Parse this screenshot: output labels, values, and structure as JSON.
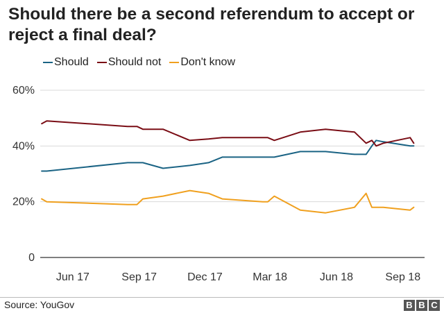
{
  "chart_data": {
    "type": "line",
    "title": "Should there be a second referendum to accept or reject a final deal?",
    "xlabel": "",
    "ylabel": "",
    "ylim": [
      0,
      60
    ],
    "yticks": [
      0,
      20,
      40,
      60
    ],
    "ytick_labels": [
      "0",
      "20%",
      "40%",
      "60%"
    ],
    "xticks": [
      "2017-06-15",
      "2017-09-15",
      "2017-12-15",
      "2018-03-15",
      "2018-06-15",
      "2018-09-15"
    ],
    "xtick_labels": [
      "Jun 17",
      "Sep 17",
      "Dec 17",
      "Mar 18",
      "Jun 18",
      "Sep 18"
    ],
    "xlim": [
      "2017-05-01",
      "2018-10-15"
    ],
    "grid": true,
    "legend_position": "top-left",
    "x": [
      "2017-05-03",
      "2017-05-10",
      "2017-08-30",
      "2017-09-12",
      "2017-09-20",
      "2017-10-18",
      "2017-11-24",
      "2017-12-20",
      "2018-01-08",
      "2018-03-05",
      "2018-03-12",
      "2018-03-21",
      "2018-04-26",
      "2018-05-31",
      "2018-07-10",
      "2018-07-26",
      "2018-08-03",
      "2018-08-09",
      "2018-08-19",
      "2018-09-25",
      "2018-09-30"
    ],
    "series": [
      {
        "name": "Should",
        "color": "#1a6384",
        "values": [
          31,
          31,
          34,
          34,
          34,
          32,
          33,
          34,
          36,
          36,
          36,
          36,
          38,
          38,
          37,
          37,
          40,
          42,
          41.5,
          40,
          40
        ]
      },
      {
        "name": "Should not",
        "color": "#7a0d15",
        "values": [
          48,
          49,
          47,
          47,
          46,
          46,
          42,
          42.5,
          43,
          43,
          43,
          42,
          45,
          46,
          45,
          41,
          42,
          40,
          41,
          43,
          41
        ]
      },
      {
        "name": "Don't know",
        "color": "#f0a01e",
        "values": [
          21,
          20,
          19,
          19,
          21,
          22,
          24,
          23,
          21,
          20,
          20,
          22,
          17,
          16,
          18,
          23,
          18,
          18,
          18,
          17,
          18
        ]
      }
    ],
    "source": "Source: YouGov",
    "logo": [
      "B",
      "B",
      "C"
    ]
  }
}
